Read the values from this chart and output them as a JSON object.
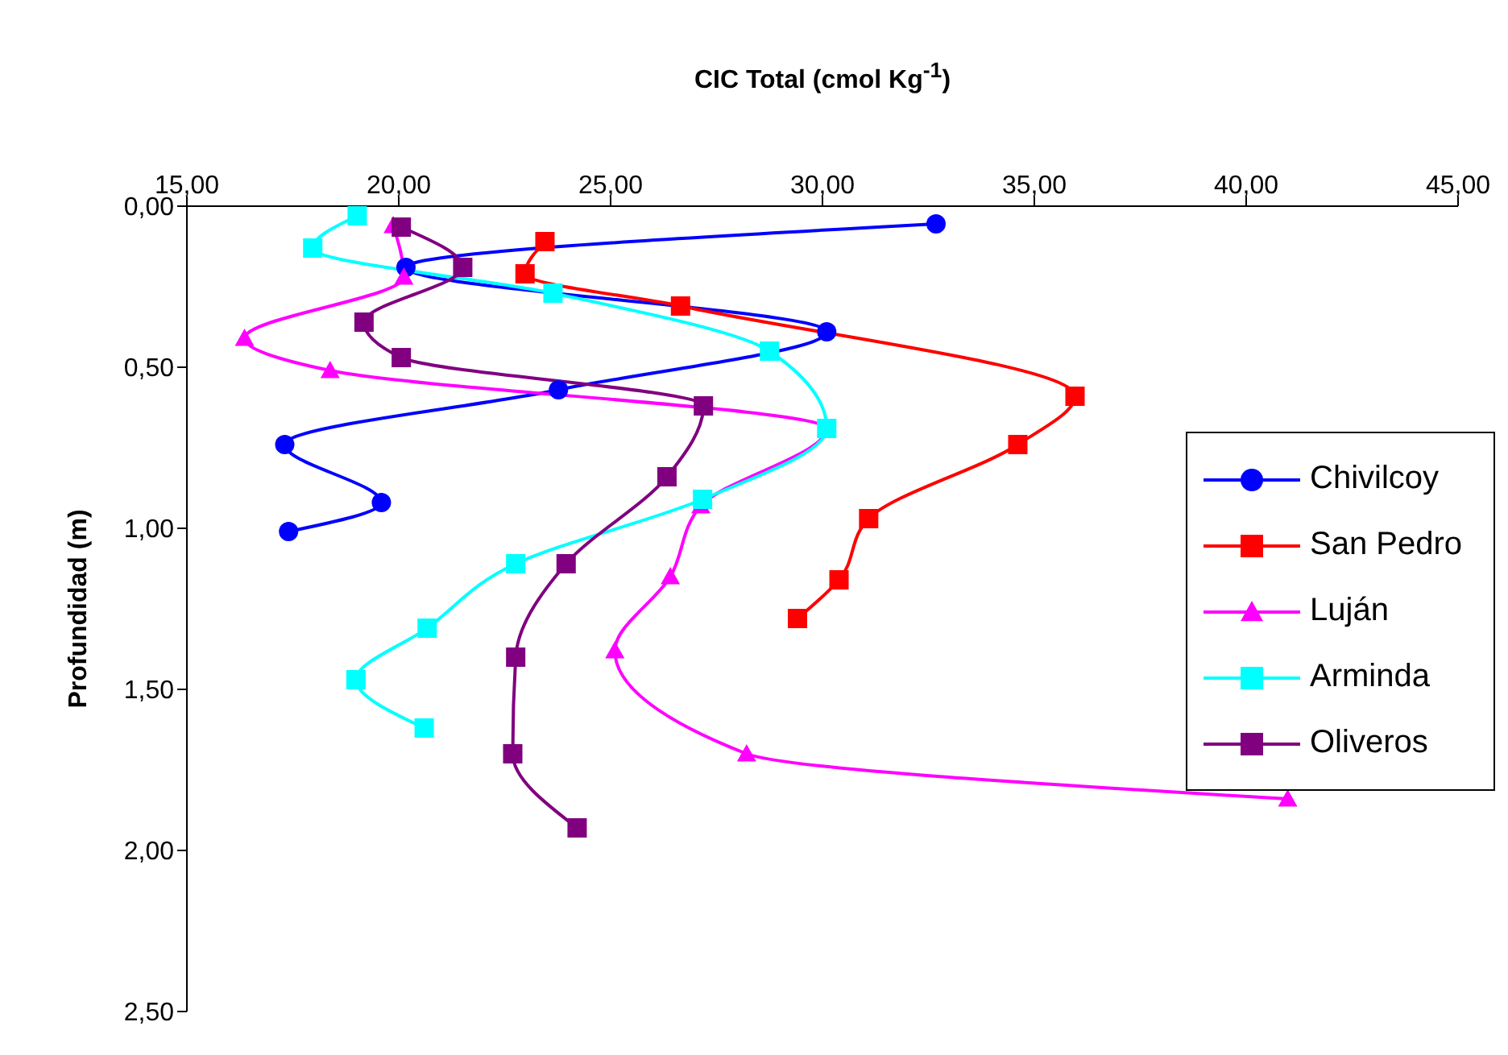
{
  "chart_data": {
    "type": "line",
    "xlabel": "CIC Total (cmol Kg$^{-1}$)",
    "ylabel": "Profundidad (m)",
    "xlim": [
      15,
      45
    ],
    "xticks": [
      {
        "value": 15,
        "label": "15,00"
      },
      {
        "value": 20,
        "label": "20,00"
      },
      {
        "value": 25,
        "label": "25,00"
      },
      {
        "value": 30,
        "label": "30,00"
      },
      {
        "value": 35,
        "label": "35,00"
      },
      {
        "value": 40,
        "label": "40,00"
      },
      {
        "value": 45,
        "label": "45,00"
      }
    ],
    "ylim": [
      2.5,
      0
    ],
    "yticks": [
      {
        "value": 0,
        "label": "0,00"
      },
      {
        "value": 0.5,
        "label": "0,50"
      },
      {
        "value": 1,
        "label": "1,00"
      },
      {
        "value": 1.5,
        "label": "1,50"
      },
      {
        "value": 2,
        "label": "2,00"
      },
      {
        "value": 2.5,
        "label": "2,50"
      }
    ],
    "grid": false,
    "legend": "right",
    "series": [
      {
        "name": "Chivilcoy",
        "color": "#0000ff",
        "marker": "circle",
        "x": [
          32.68,
          20.17,
          30.1,
          23.77,
          17.31,
          19.59,
          17.4
        ],
        "values": [
          0.055,
          0.19,
          0.39,
          0.57,
          0.74,
          0.92,
          1.01
        ]
      },
      {
        "name": "San Pedro",
        "color": "#ff0000",
        "marker": "square",
        "x": [
          23.45,
          22.98,
          26.65,
          35.96,
          34.61,
          31.09,
          30.39,
          29.41
        ],
        "values": [
          0.11,
          0.21,
          0.31,
          0.59,
          0.74,
          0.97,
          1.16,
          1.28
        ]
      },
      {
        "name": "Luján",
        "color": "#ff00ff",
        "marker": "triangle",
        "x": [
          19.87,
          20.12,
          16.36,
          18.38,
          30.1,
          27.13,
          26.41,
          25.1,
          28.21,
          40.98
        ],
        "values": [
          0.06,
          0.22,
          0.41,
          0.51,
          0.69,
          0.93,
          1.15,
          1.38,
          1.7,
          1.84
        ]
      },
      {
        "name": "Arminda",
        "color": "#00ffff",
        "marker": "square",
        "x": [
          19.02,
          17.97,
          23.64,
          28.75,
          30.1,
          27.17,
          22.76,
          20.67,
          18.99,
          20.6
        ],
        "values": [
          0.03,
          0.13,
          0.27,
          0.45,
          0.69,
          0.91,
          1.11,
          1.31,
          1.47,
          1.62
        ]
      },
      {
        "name": "Oliveros",
        "color": "#800080",
        "marker": "square",
        "x": [
          20.06,
          21.51,
          19.18,
          20.06,
          27.19,
          26.33,
          23.95,
          22.76,
          22.69,
          24.21
        ],
        "values": [
          0.065,
          0.19,
          0.36,
          0.47,
          0.62,
          0.84,
          1.11,
          1.4,
          1.7,
          1.93
        ]
      }
    ]
  }
}
